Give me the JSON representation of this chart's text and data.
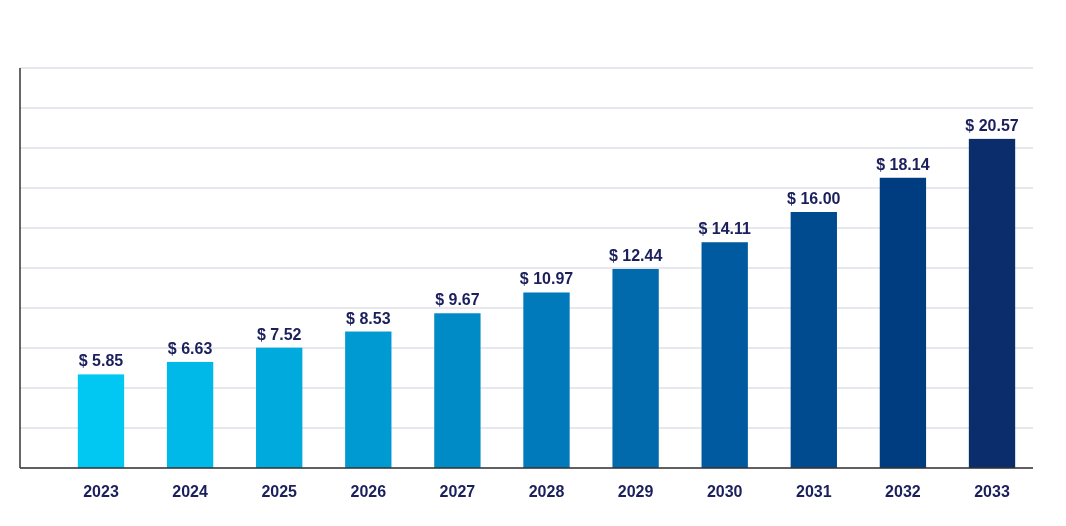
{
  "chart_data": {
    "type": "bar",
    "categories": [
      "2023",
      "2024",
      "2025",
      "2026",
      "2027",
      "2028",
      "2029",
      "2030",
      "2031",
      "2032",
      "2033"
    ],
    "values": [
      5.85,
      6.63,
      7.52,
      8.53,
      9.67,
      10.97,
      12.44,
      14.11,
      16.0,
      18.14,
      20.57
    ],
    "colors": [
      "#00c8f2",
      "#00b9e8",
      "#00aadd",
      "#009ad2",
      "#008ac6",
      "#007aba",
      "#006aad",
      "#005a9f",
      "#004b90",
      "#003d80",
      "#0b2d6b"
    ],
    "value_labels": [
      "$ 5.85",
      "$ 6.63",
      "$ 7.52",
      "$ 8.53",
      "$ 9.67",
      "$ 10.97",
      "$ 12.44",
      "$ 14.11",
      "$ 16.00",
      "$ 18.14",
      "$ 20.57"
    ],
    "ylim": [
      0,
      25
    ],
    "yticks": [
      {
        "value": 0,
        "label": null
      },
      {
        "value": 2.5,
        "label": null
      },
      {
        "value": 5,
        "label": null
      },
      {
        "value": 7.5,
        "label": null
      },
      {
        "value": 10,
        "label": null
      },
      {
        "value": 12.5,
        "label": null
      },
      {
        "value": 15,
        "label": null
      },
      {
        "value": 17.5,
        "label": null
      },
      {
        "value": 20,
        "label": null
      },
      {
        "value": 22.5,
        "label": null
      },
      {
        "value": 25,
        "label": null
      }
    ],
    "grid": "y",
    "tick_labels": "x"
  }
}
